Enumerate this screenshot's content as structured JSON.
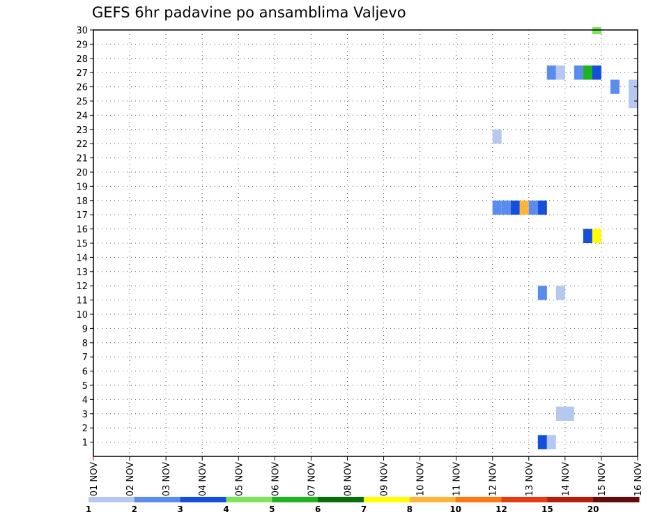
{
  "chart_data": {
    "type": "heatmap",
    "title": "GEFS 6hr padavine po ansamblima Valjevo",
    "xlabel": "",
    "ylabel": "",
    "x_ticks": [
      "01 NOV",
      "02 NOV",
      "03 NOV",
      "04 NOV",
      "05 NOV",
      "06 NOV",
      "07 NOV",
      "08 NOV",
      "09 NOV",
      "10 NOV",
      "11 NOV",
      "12 NOV",
      "13 NOV",
      "14 NOV",
      "15 NOV",
      "16 NOV"
    ],
    "x_range": [
      "01 NOV 00Z",
      "16 NOV 00Z"
    ],
    "y_ticks": [
      1,
      2,
      3,
      4,
      5,
      6,
      7,
      8,
      9,
      10,
      11,
      12,
      13,
      14,
      15,
      16,
      17,
      18,
      19,
      20,
      21,
      22,
      23,
      24,
      25,
      26,
      27,
      28,
      29,
      30
    ],
    "ylim": [
      0,
      30
    ],
    "grid": true,
    "colorbar": {
      "labels": [
        "1",
        "2",
        "3",
        "4",
        "5",
        "6",
        "7",
        "8",
        "10",
        "12",
        "15",
        "20"
      ],
      "colors": [
        "#b4c8f0",
        "#5a8cf0",
        "#1450dc",
        "#7ae65a",
        "#1eb41e",
        "#0a6e0a",
        "#ffff00",
        "#ffb43c",
        "#ff7814",
        "#e63c14",
        "#b41e0a",
        "#640a0a"
      ]
    },
    "cells": [
      {
        "date": "12 NOV",
        "hour": 0,
        "y0": 22,
        "y1": 23,
        "value": 1
      },
      {
        "date": "12 NOV",
        "hour": 0,
        "y0": 17,
        "y1": 18,
        "value": 2
      },
      {
        "date": "12 NOV",
        "hour": 6,
        "y0": 17,
        "y1": 18,
        "value": 2
      },
      {
        "date": "12 NOV",
        "hour": 12,
        "y0": 17,
        "y1": 18,
        "value": 3
      },
      {
        "date": "12 NOV",
        "hour": 18,
        "y0": 17,
        "y1": 18,
        "value": 8
      },
      {
        "date": "13 NOV",
        "hour": 0,
        "y0": 17,
        "y1": 18,
        "value": 2
      },
      {
        "date": "13 NOV",
        "hour": 6,
        "y0": 17,
        "y1": 18,
        "value": 3
      },
      {
        "date": "13 NOV",
        "hour": 6,
        "y0": 11,
        "y1": 12,
        "value": 2
      },
      {
        "date": "13 NOV",
        "hour": 6,
        "y0": 0.5,
        "y1": 1.5,
        "value": 3
      },
      {
        "date": "13 NOV",
        "hour": 12,
        "y0": 0.5,
        "y1": 1.5,
        "value": 1
      },
      {
        "date": "13 NOV",
        "hour": 12,
        "y0": 26.5,
        "y1": 27.5,
        "value": 2
      },
      {
        "date": "13 NOV",
        "hour": 18,
        "y0": 26.5,
        "y1": 27.5,
        "value": 1
      },
      {
        "date": "13 NOV",
        "hour": 18,
        "y0": 11,
        "y1": 12,
        "value": 1
      },
      {
        "date": "13 NOV",
        "hour": 18,
        "y0": 2.5,
        "y1": 3.5,
        "value": 1
      },
      {
        "date": "14 NOV",
        "hour": 0,
        "y0": 2.5,
        "y1": 3.5,
        "value": 1
      },
      {
        "date": "14 NOV",
        "hour": 6,
        "y0": 26.5,
        "y1": 27.5,
        "value": 2
      },
      {
        "date": "14 NOV",
        "hour": 12,
        "y0": 26.5,
        "y1": 27.5,
        "value": 5
      },
      {
        "date": "14 NOV",
        "hour": 12,
        "y0": 15,
        "y1": 16,
        "value": 3
      },
      {
        "date": "14 NOV",
        "hour": 18,
        "y0": 26.5,
        "y1": 27.5,
        "value": 3
      },
      {
        "date": "14 NOV",
        "hour": 18,
        "y0": 15,
        "y1": 16,
        "value": 7
      },
      {
        "date": "14 NOV",
        "hour": 18,
        "y0": 29.7,
        "y1": 30.2,
        "value": 4
      },
      {
        "date": "15 NOV",
        "hour": 6,
        "y0": 25.5,
        "y1": 26.5,
        "value": 2
      },
      {
        "date": "15 NOV",
        "hour": 18,
        "y0": 24.5,
        "y1": 26.5,
        "value": 1
      }
    ]
  }
}
